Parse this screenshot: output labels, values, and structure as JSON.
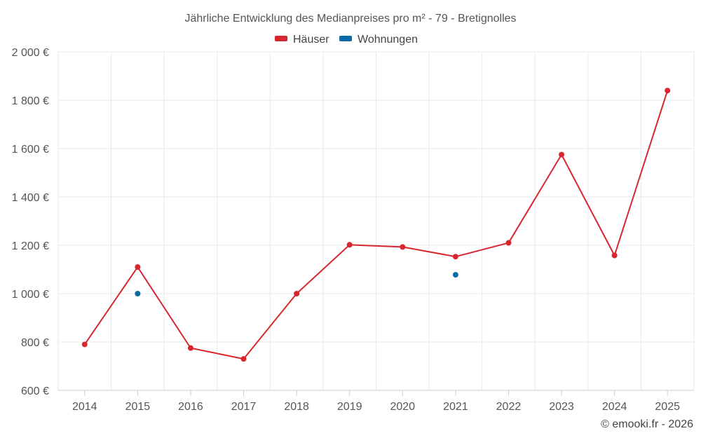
{
  "chart_data": {
    "type": "line",
    "title": "Jährliche Entwicklung des Medianpreises pro m² - 79 - Bretignolles",
    "x": [
      2014,
      2015,
      2016,
      2017,
      2018,
      2019,
      2020,
      2021,
      2022,
      2023,
      2024,
      2025
    ],
    "series": [
      {
        "name": "Häuser",
        "color": "#d9262e",
        "values": [
          790,
          1110,
          775,
          730,
          1000,
          1202,
          1193,
          1153,
          1210,
          1575,
          1158,
          1840
        ]
      },
      {
        "name": "Wohnungen",
        "color": "#0b6aa6",
        "values": [
          null,
          1000,
          null,
          null,
          null,
          null,
          null,
          1078,
          null,
          null,
          null,
          null
        ]
      }
    ],
    "ylim": [
      600,
      2000
    ],
    "yticks": [
      600,
      800,
      1000,
      1200,
      1400,
      1600,
      1800,
      2000
    ],
    "ytick_labels": [
      "600 €",
      "800 €",
      "1 000 €",
      "1 200 €",
      "1 400 €",
      "1 600 €",
      "1 800 €",
      "2 000 €"
    ],
    "xtick_labels": [
      "2014",
      "2015",
      "2016",
      "2017",
      "2018",
      "2019",
      "2020",
      "2021",
      "2022",
      "2023",
      "2024",
      "2025"
    ],
    "legend_position": "top-center",
    "grid": true
  },
  "credit": "© emooki.fr - 2026"
}
